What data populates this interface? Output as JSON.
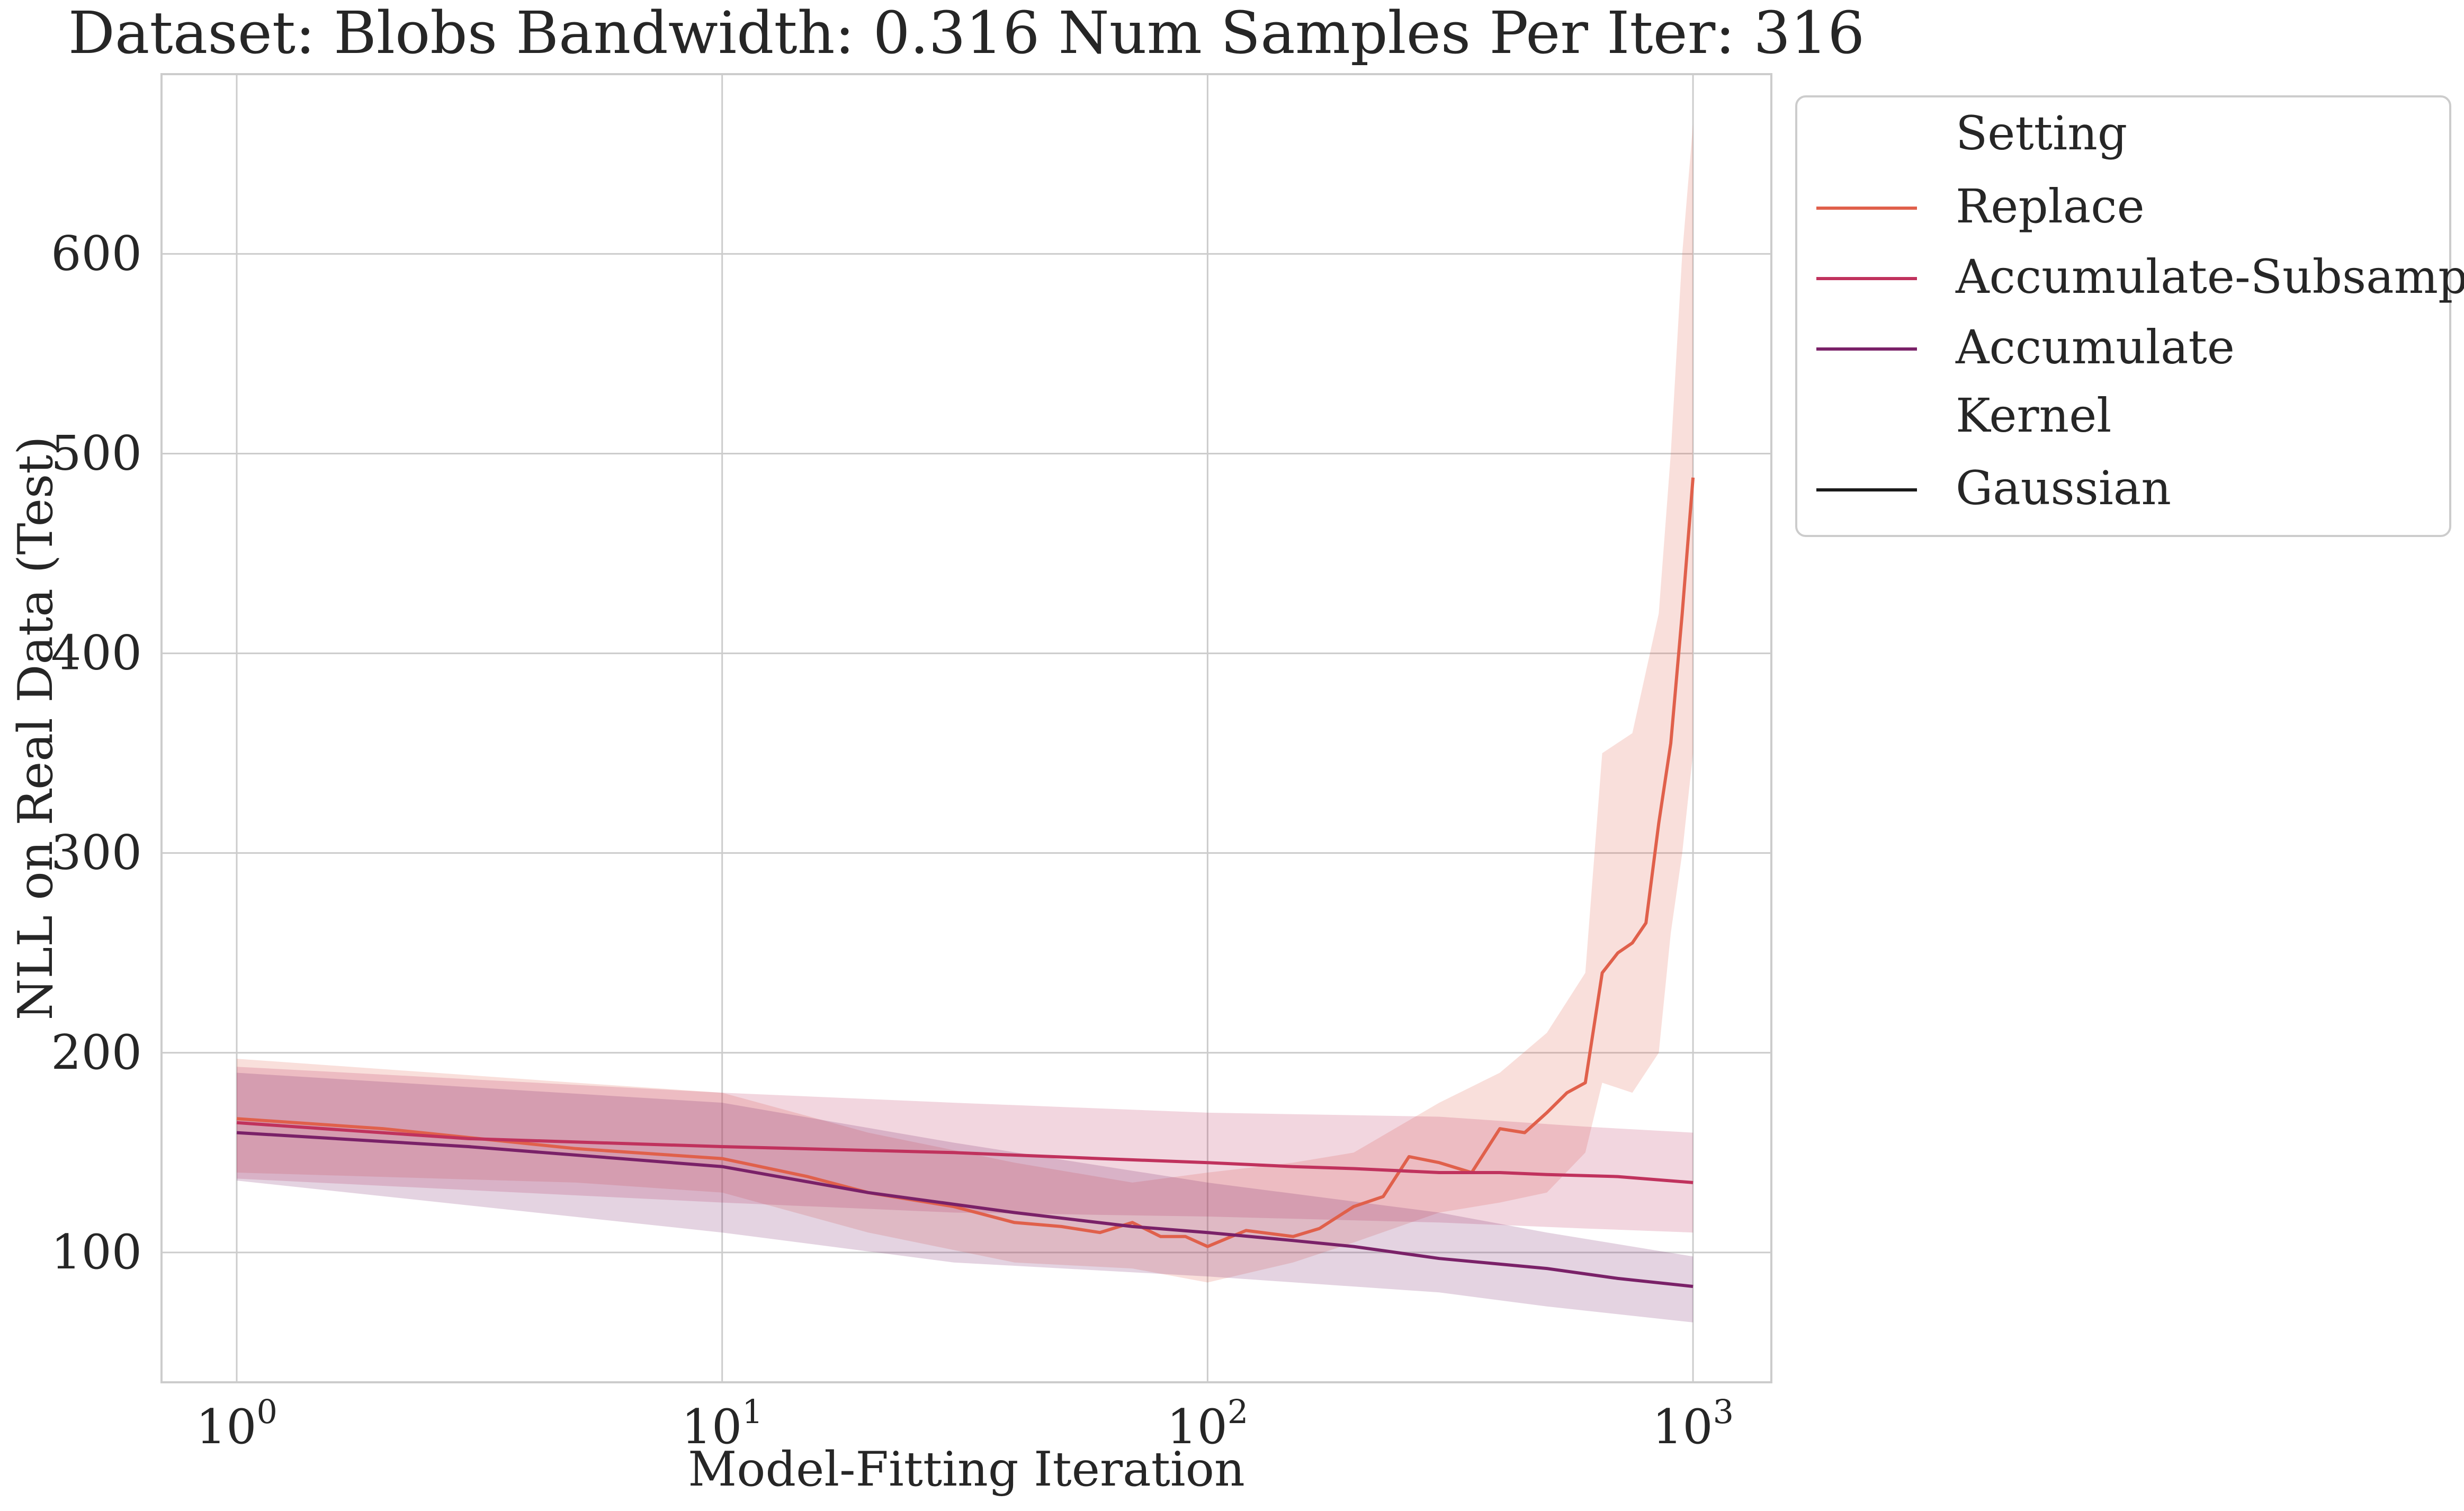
{
  "chart_data": {
    "type": "line",
    "title": "Dataset: Blobs Bandwidth: 0.316 Num Samples Per Iter: 316",
    "xlabel": "Model-Fitting Iteration",
    "ylabel": "NLL on Real Data (Test)",
    "xscale": "log",
    "xlim": [
      0.7,
      1450
    ],
    "ylim": [
      35,
      690
    ],
    "xticks": [
      1,
      10,
      100,
      1000
    ],
    "xtick_labels": [
      {
        "base": "10",
        "exp": "0"
      },
      {
        "base": "10",
        "exp": "1"
      },
      {
        "base": "10",
        "exp": "2"
      },
      {
        "base": "10",
        "exp": "3"
      }
    ],
    "yticks": [
      100,
      200,
      300,
      400,
      500,
      600
    ],
    "ytick_labels": [
      "100",
      "200",
      "300",
      "400",
      "500",
      "600"
    ],
    "grid": true,
    "legend_placement": "outside-upper-right",
    "legend": {
      "setting_title": "Setting",
      "kernel_title": "Kernel",
      "kernel_entries": [
        {
          "label": "Gaussian",
          "color": "#1a1a1a"
        }
      ]
    },
    "series": [
      {
        "name": "Replace",
        "color": "#e0604b",
        "points": [
          [
            1,
            167
          ],
          [
            2,
            162
          ],
          [
            5,
            152
          ],
          [
            10,
            147
          ],
          [
            15,
            138
          ],
          [
            20,
            130
          ],
          [
            30,
            123
          ],
          [
            40,
            115
          ],
          [
            50,
            113
          ],
          [
            60,
            110
          ],
          [
            70,
            115
          ],
          [
            80,
            108
          ],
          [
            90,
            108
          ],
          [
            100,
            103
          ],
          [
            120,
            111
          ],
          [
            150,
            108
          ],
          [
            170,
            112
          ],
          [
            200,
            123
          ],
          [
            230,
            128
          ],
          [
            260,
            148
          ],
          [
            300,
            145
          ],
          [
            350,
            140
          ],
          [
            400,
            162
          ],
          [
            450,
            160
          ],
          [
            500,
            170
          ],
          [
            550,
            180
          ],
          [
            600,
            185
          ],
          [
            650,
            240
          ],
          [
            700,
            250
          ],
          [
            750,
            255
          ],
          [
            800,
            265
          ],
          [
            850,
            315
          ],
          [
            900,
            355
          ],
          [
            950,
            420
          ],
          [
            1000,
            488
          ]
        ],
        "band": [
          [
            1,
            140,
            197
          ],
          [
            5,
            135,
            185
          ],
          [
            10,
            130,
            180
          ],
          [
            20,
            110,
            160
          ],
          [
            40,
            95,
            145
          ],
          [
            70,
            92,
            135
          ],
          [
            100,
            85,
            140
          ],
          [
            150,
            95,
            145
          ],
          [
            200,
            105,
            150
          ],
          [
            300,
            120,
            175
          ],
          [
            400,
            125,
            190
          ],
          [
            500,
            130,
            210
          ],
          [
            600,
            150,
            240
          ],
          [
            650,
            185,
            350
          ],
          [
            750,
            180,
            360
          ],
          [
            850,
            200,
            420
          ],
          [
            900,
            260,
            500
          ],
          [
            950,
            300,
            600
          ],
          [
            1000,
            350,
            665
          ]
        ]
      },
      {
        "name": "Accumulate-Subsample",
        "color": "#c0325d",
        "points": [
          [
            1,
            165
          ],
          [
            3,
            157
          ],
          [
            10,
            153
          ],
          [
            30,
            150
          ],
          [
            60,
            147
          ],
          [
            100,
            145
          ],
          [
            150,
            143
          ],
          [
            200,
            142
          ],
          [
            300,
            140
          ],
          [
            400,
            140
          ],
          [
            500,
            139
          ],
          [
            700,
            138
          ],
          [
            1000,
            135
          ]
        ],
        "band": [
          [
            1,
            137,
            193
          ],
          [
            10,
            125,
            180
          ],
          [
            30,
            120,
            175
          ],
          [
            100,
            118,
            170
          ],
          [
            300,
            115,
            168
          ],
          [
            600,
            112,
            163
          ],
          [
            1000,
            110,
            160
          ]
        ]
      },
      {
        "name": "Accumulate",
        "color": "#7a2168",
        "points": [
          [
            1,
            160
          ],
          [
            3,
            153
          ],
          [
            10,
            143
          ],
          [
            20,
            130
          ],
          [
            40,
            120
          ],
          [
            70,
            113
          ],
          [
            100,
            110
          ],
          [
            150,
            106
          ],
          [
            200,
            103
          ],
          [
            300,
            97
          ],
          [
            500,
            92
          ],
          [
            700,
            87
          ],
          [
            1000,
            83
          ]
        ],
        "band": [
          [
            1,
            136,
            190
          ],
          [
            10,
            110,
            175
          ],
          [
            30,
            95,
            155
          ],
          [
            100,
            88,
            135
          ],
          [
            300,
            80,
            120
          ],
          [
            500,
            73,
            110
          ],
          [
            1000,
            65,
            98
          ]
        ]
      }
    ]
  }
}
